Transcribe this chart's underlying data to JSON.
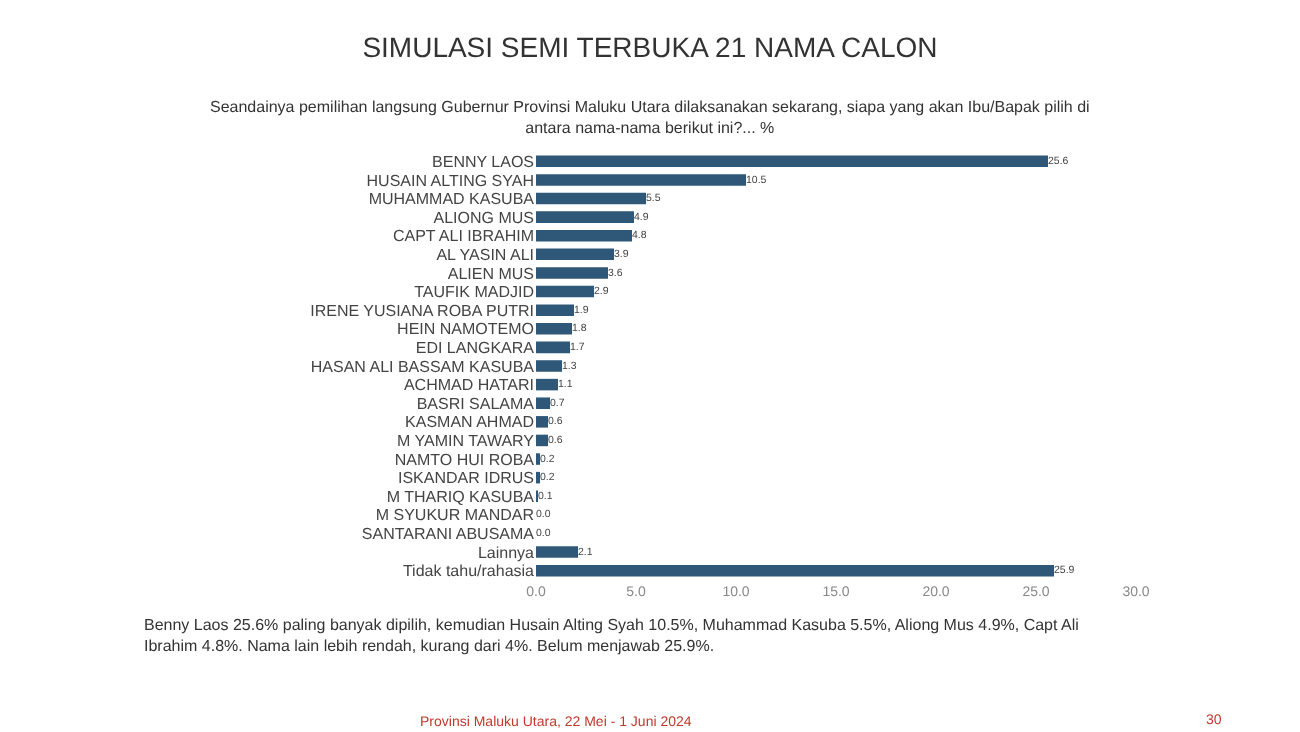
{
  "chart_data": {
    "type": "bar",
    "orientation": "horizontal",
    "title": "SIMULASI SEMI TERBUKA 21 NAMA CALON",
    "subtitle": "Seandainya pemilihan langsung Gubernur Provinsi Maluku Utara dilaksanakan sekarang, siapa yang akan Ibu/Bapak pilih di\nantara nama-nama berikut ini?... %",
    "categories": [
      "BENNY LAOS",
      "HUSAIN ALTING SYAH",
      "MUHAMMAD KASUBA",
      "ALIONG MUS",
      "CAPT ALI IBRAHIM",
      "AL YASIN ALI",
      "ALIEN MUS",
      "TAUFIK MADJID",
      "IRENE YUSIANA ROBA PUTRI",
      "HEIN NAMOTEMO",
      "EDI LANGKARA",
      "HASAN ALI BASSAM KASUBA",
      "ACHMAD HATARI",
      "BASRI SALAMA",
      "KASMAN AHMAD",
      "M YAMIN TAWARY",
      "NAMTO HUI ROBA",
      "ISKANDAR IDRUS",
      "M THARIQ KASUBA",
      "M SYUKUR MANDAR",
      "SANTARANI ABUSAMA",
      "Lainnya",
      "Tidak tahu/rahasia"
    ],
    "values": [
      25.6,
      10.5,
      5.5,
      4.9,
      4.8,
      3.9,
      3.6,
      2.9,
      1.9,
      1.8,
      1.7,
      1.3,
      1.1,
      0.7,
      0.6,
      0.6,
      0.2,
      0.2,
      0.1,
      0.0,
      0.0,
      2.1,
      25.9
    ],
    "value_labels": [
      "25.6",
      "10.5",
      "5.5",
      "4.9",
      "4.8",
      "3.9",
      "3.6",
      "2.9",
      "1.9",
      "1.8",
      "1.7",
      "1.3",
      "1.1",
      "0.7",
      "0.6",
      "0.6",
      "0.2",
      "0.2",
      "0.1",
      "0.0",
      "0.0",
      "2.1",
      "25.9"
    ],
    "color": "#2f5878",
    "xlim": [
      0,
      30
    ],
    "xticks": [
      {
        "value": 0,
        "label": "0.0"
      },
      {
        "value": 5,
        "label": "5.0"
      },
      {
        "value": 10,
        "label": "10.0"
      },
      {
        "value": 15,
        "label": "15.0"
      },
      {
        "value": 20,
        "label": "20.0"
      },
      {
        "value": 25,
        "label": "25.0"
      },
      {
        "value": 30,
        "label": "30.0"
      }
    ],
    "legend": false,
    "annotations": [
      "Benny Laos 25.6% paling banyak dipilih, kemudian Husain Alting Syah 10.5%, Muhammad Kasuba 5.5%, Aliong Mus 4.9%, Capt Ali\nIbrahim 4.8%. Nama lain lebih rendah, kurang dari 4%. Belum menjawab 25.9%.",
      "Provinsi Maluku Utara, 22 Mei - 1 Juni 2024",
      "30"
    ]
  }
}
